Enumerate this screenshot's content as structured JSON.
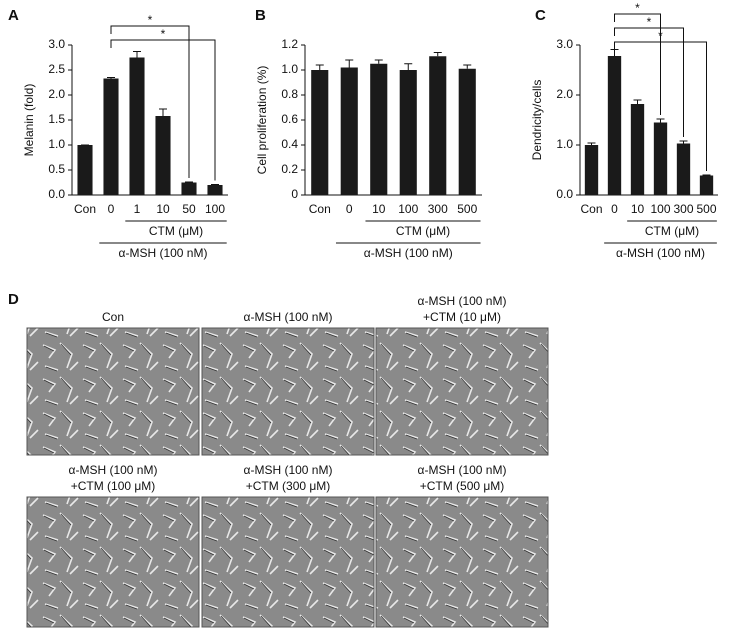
{
  "chart_data": [
    {
      "type": "bar",
      "panel": "A",
      "y_label": "Melanin (fold)",
      "color": "#1a1a1a",
      "categories": [
        "Con",
        "0",
        "1",
        "10",
        "50",
        "100"
      ],
      "values": [
        1.0,
        2.33,
        2.75,
        1.58,
        0.25,
        0.2
      ],
      "errors": [
        0,
        0.02,
        0.12,
        0.14,
        0.01,
        0.01
      ],
      "ylim": [
        0,
        3.0
      ],
      "yticks": [
        {
          "value": 0,
          "label": "0.0"
        },
        0.5,
        {
          "value": 1,
          "label": "1.0"
        },
        1.5,
        {
          "value": 2,
          "label": "2.0"
        },
        2.5,
        {
          "value": 3,
          "label": "3.0"
        }
      ],
      "groups": [
        {
          "label": "CTM (μM)",
          "start": 2,
          "end": 5
        },
        {
          "label": "α-MSH (100 nM)",
          "start": 1,
          "end": 5
        }
      ],
      "annotations": [
        {
          "label": "*",
          "from": 1,
          "to": 4
        },
        {
          "label": "*",
          "from": 1,
          "to": 5
        }
      ]
    },
    {
      "type": "bar",
      "panel": "B",
      "y_label": "Cell proliferation (%)",
      "color": "#1a1a1a",
      "categories": [
        "Con",
        "0",
        "10",
        "100",
        "300",
        "500"
      ],
      "values": [
        1.0,
        1.02,
        1.05,
        1.0,
        1.11,
        1.01
      ],
      "errors": [
        0.04,
        0.06,
        0.03,
        0.05,
        0.03,
        0.03
      ],
      "ylim": [
        0,
        1.2
      ],
      "yticks": [
        0,
        0.2,
        0.4,
        0.6,
        0.8,
        {
          "value": 1,
          "label": "1.0"
        },
        1.2
      ],
      "groups": [
        {
          "label": "CTM (μM)",
          "start": 2,
          "end": 5
        },
        {
          "label": "α-MSH (100 nM)",
          "start": 1,
          "end": 5
        }
      ],
      "annotations": []
    },
    {
      "type": "bar",
      "panel": "C",
      "y_label": "Dendricity/cells",
      "color": "#1a1a1a",
      "categories": [
        "Con",
        "0",
        "10",
        "100",
        "300",
        "500"
      ],
      "values": [
        1.0,
        2.78,
        1.82,
        1.45,
        1.03,
        0.39
      ],
      "errors": [
        0.04,
        0.13,
        0.08,
        0.07,
        0.05,
        0.01
      ],
      "ylim": [
        0,
        3.0
      ],
      "yticks": [
        {
          "value": 0,
          "label": "0.0"
        },
        {
          "value": 1,
          "label": "1.0"
        },
        {
          "value": 2,
          "label": "2.0"
        },
        {
          "value": 3,
          "label": "3.0"
        }
      ],
      "groups": [
        {
          "label": "CTM (μM)",
          "start": 2,
          "end": 5
        },
        {
          "label": "α-MSH (100 nM)",
          "start": 1,
          "end": 5
        }
      ],
      "annotations": [
        {
          "label": "*",
          "from": 1,
          "to": 3
        },
        {
          "label": "*",
          "from": 1,
          "to": 4
        },
        {
          "label": "*",
          "from": 1,
          "to": 5
        }
      ]
    }
  ],
  "panel_d": {
    "panel": "D",
    "images": [
      {
        "caption": [
          "Con"
        ]
      },
      {
        "caption": [
          "α-MSH (100 nM)"
        ]
      },
      {
        "caption": [
          "α-MSH (100 nM)",
          "+CTM (10 μM)"
        ]
      },
      {
        "caption": [
          "α-MSH (100 nM)",
          "+CTM (100 μM)"
        ]
      },
      {
        "caption": [
          "α-MSH (100 nM)",
          "+CTM (300 μM)"
        ]
      },
      {
        "caption": [
          "α-MSH (100 nM)",
          "+CTM (500 μM)"
        ]
      }
    ]
  }
}
